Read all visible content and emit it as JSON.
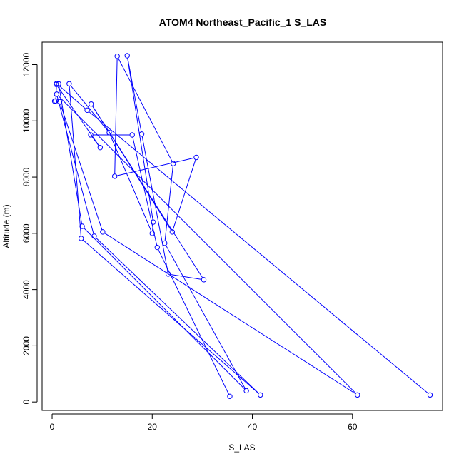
{
  "chart_data": {
    "type": "scatter",
    "title": "ATOM4 Northeast_Pacific_1 S_LAS",
    "xlabel": "S_LAS",
    "ylabel": "Altitude (m)",
    "xlim": [
      -2,
      78
    ],
    "ylim": [
      -300,
      12800
    ],
    "xticks": [
      0,
      20,
      40,
      60
    ],
    "yticks": [
      0,
      2000,
      4000,
      6000,
      8000,
      10000,
      12000
    ],
    "grid": false,
    "legend": "none",
    "line_color": "#0000ff",
    "series": [
      {
        "points": [
          [
            35.5,
            200
          ],
          [
            21.0,
            5500
          ],
          [
            16.0,
            9500
          ],
          [
            7.7,
            9500
          ],
          [
            9.6,
            9050
          ],
          [
            0.8,
            11300
          ],
          [
            1.3,
            11320
          ],
          [
            6.0,
            6250
          ],
          [
            38.8,
            400
          ],
          [
            22.5,
            5650
          ],
          [
            24.2,
            8480
          ],
          [
            13.0,
            12300
          ],
          [
            12.5,
            8030
          ],
          [
            28.8,
            8700
          ],
          [
            24.0,
            6050
          ],
          [
            7.8,
            10600
          ],
          [
            30.3,
            4350
          ],
          [
            23.2,
            4550
          ],
          [
            17.9,
            9530
          ],
          [
            15.0,
            12320
          ],
          [
            20.2,
            6400
          ],
          [
            20.0,
            6000
          ],
          [
            11.4,
            9580
          ],
          [
            3.4,
            11320
          ],
          [
            5.8,
            5820
          ],
          [
            41.6,
            250
          ],
          [
            8.4,
            5900
          ],
          [
            0.9,
            10950
          ],
          [
            61.0,
            250
          ],
          [
            10.1,
            6050
          ],
          [
            1.5,
            10680
          ],
          [
            0.5,
            10700
          ],
          [
            0.7,
            10710
          ],
          [
            0.9,
            11330
          ],
          [
            7.0,
            10380
          ],
          [
            75.5,
            250
          ]
        ]
      }
    ]
  }
}
